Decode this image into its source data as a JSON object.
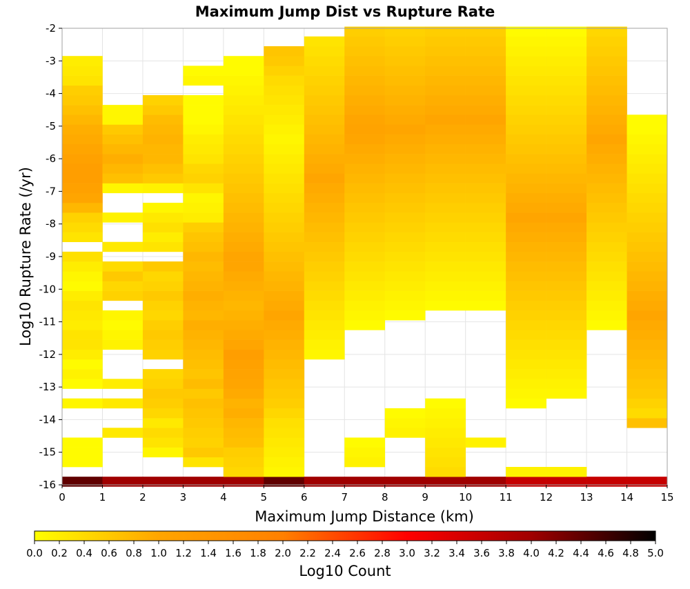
{
  "chart_data": {
    "type": "heatmap",
    "title": "Maximum Jump Dist vs Rupture Rate",
    "xlabel": "Maximum Jump Distance (km)",
    "ylabel": "Log10 Rupture Rate (/yr)",
    "xlim": [
      0,
      15
    ],
    "ylim": [
      -16,
      -2
    ],
    "x_ticks": [
      "0",
      "1",
      "2",
      "3",
      "4",
      "5",
      "6",
      "7",
      "8",
      "9",
      "10",
      "11",
      "12",
      "13",
      "14",
      "15"
    ],
    "y_ticks": [
      "-16",
      "-15",
      "-14",
      "-13",
      "-12",
      "-11",
      "-10",
      "-9",
      "-8",
      "-7",
      "-6",
      "-5",
      "-4",
      "-3",
      "-2"
    ],
    "x_bin_width": 1,
    "y_bin_height": 0.3,
    "y_bin_start": -15.9,
    "grid": true,
    "colorbar": {
      "label": "Log10 Count",
      "range": [
        0,
        5
      ],
      "ticks": [
        "0.0",
        "0.2",
        "0.4",
        "0.6",
        "0.8",
        "1.0",
        "1.2",
        "1.4",
        "1.6",
        "1.8",
        "2.0",
        "2.2",
        "2.4",
        "2.6",
        "2.8",
        "3.0",
        "3.2",
        "3.4",
        "3.6",
        "3.8",
        "4.0",
        "4.2",
        "4.4",
        "4.6",
        "4.8",
        "5.0"
      ],
      "colors": [
        "#ffff00",
        "#ffa500",
        "#ff8000",
        "#ff0000",
        "#a00000",
        "#000000"
      ]
    },
    "columns": [
      {
        "x": 0,
        "values": [
          4.4,
          0,
          0.05,
          0.05,
          0.05,
          0,
          0,
          0,
          0.1,
          0,
          0.05,
          0.15,
          0.05,
          0.2,
          0.3,
          0.3,
          0.2,
          0.25,
          0.3,
          0.2,
          0.05,
          0.1,
          0.2,
          0.35,
          0,
          0.3,
          0.4,
          0.5,
          0.8,
          1.0,
          1.1,
          1.2,
          1.2,
          1.1,
          1.0,
          0.95,
          0.9,
          0.8,
          0.7,
          0.6,
          0.55,
          0.3,
          0.25,
          0.2,
          0,
          0,
          0
        ]
      },
      {
        "x": 1,
        "values": [
          4.0,
          0,
          0,
          0,
          0,
          0.25,
          0,
          0,
          0.25,
          0,
          0.2,
          0,
          0,
          0,
          0.15,
          0.1,
          0.05,
          0.1,
          0,
          0.5,
          0.45,
          0.6,
          0.4,
          0,
          0.25,
          0,
          0,
          0.15,
          0,
          0,
          0.1,
          0.7,
          0.8,
          0.9,
          0.8,
          0.7,
          0.6,
          0.1,
          0.1,
          0,
          0,
          0,
          0,
          0,
          0,
          0,
          0
        ]
      },
      {
        "x": 2,
        "values": [
          4.0,
          0,
          0,
          0.1,
          0.3,
          0.4,
          0.25,
          0.45,
          0.55,
          0.6,
          0.5,
          0.45,
          0,
          0.5,
          0.55,
          0.6,
          0.55,
          0.45,
          0.5,
          0.6,
          0.5,
          0.45,
          0.6,
          0,
          0.3,
          0.2,
          0.35,
          0.25,
          0.1,
          0,
          0.15,
          0.6,
          0.7,
          0.8,
          0.8,
          0.85,
          0.8,
          0.75,
          0.6,
          0.5,
          0,
          0,
          0,
          0,
          0,
          0,
          0
        ]
      },
      {
        "x": 3,
        "values": [
          4.0,
          0,
          0.3,
          0.6,
          0.5,
          0.55,
          0.6,
          0.65,
          0.7,
          0.6,
          0.75,
          0.65,
          0.7,
          0.75,
          0.8,
          0.85,
          0.9,
          0.8,
          0.85,
          0.9,
          0.85,
          0.8,
          0.75,
          0.8,
          0.7,
          0.65,
          0.55,
          0.2,
          0.15,
          0.1,
          0.3,
          0.5,
          0.45,
          0.3,
          0.25,
          0.2,
          0.1,
          0.05,
          0.05,
          0.05,
          0,
          0.1,
          0.05,
          0,
          0,
          0,
          0
        ]
      },
      {
        "x": 4,
        "values": [
          4.0,
          0.45,
          0.5,
          0.55,
          0.7,
          0.75,
          0.8,
          0.9,
          0.85,
          0.95,
          1.0,
          1.05,
          1.1,
          1.2,
          1.0,
          0.95,
          0.9,
          0.85,
          0.8,
          0.85,
          0.9,
          0.95,
          1.0,
          1.0,
          0.95,
          0.9,
          0.85,
          0.8,
          0.75,
          0.7,
          0.65,
          0.6,
          0.55,
          0.5,
          0.45,
          0.4,
          0.35,
          0.3,
          0.25,
          0.2,
          0.15,
          0.1,
          0.05,
          0.05,
          0,
          0,
          0
        ]
      },
      {
        "x": 5,
        "values": [
          4.4,
          0.1,
          0.15,
          0.2,
          0.25,
          0.3,
          0.35,
          0.45,
          0.55,
          0.6,
          0.65,
          0.7,
          0.75,
          0.8,
          0.85,
          0.9,
          0.95,
          1.0,
          0.95,
          0.9,
          0.85,
          0.8,
          0.75,
          0.7,
          0.65,
          0.6,
          0.55,
          0.5,
          0.45,
          0.4,
          0.35,
          0.3,
          0.25,
          0.2,
          0.15,
          0.1,
          0.15,
          0.2,
          0.25,
          0.3,
          0.35,
          0.4,
          0.5,
          0.6,
          0.65,
          0,
          0
        ]
      },
      {
        "x": 6,
        "values": [
          4.0,
          0,
          0,
          0,
          0,
          0,
          0,
          0,
          0,
          0,
          0,
          0,
          0,
          0.1,
          0.15,
          0.2,
          0.25,
          0.3,
          0.35,
          0.4,
          0.45,
          0.5,
          0.55,
          0.6,
          0.65,
          0.7,
          0.75,
          0.8,
          0.85,
          0.9,
          0.95,
          1.0,
          0.95,
          0.9,
          0.85,
          0.8,
          0.75,
          0.7,
          0.65,
          0.6,
          0.55,
          0.5,
          0.45,
          0.4,
          0.35,
          0.3,
          0
        ]
      },
      {
        "x": 7,
        "values": [
          4.0,
          0,
          0.15,
          0.1,
          0.05,
          0,
          0,
          0,
          0,
          0,
          0,
          0,
          0,
          0,
          0,
          0,
          0.05,
          0.1,
          0.15,
          0.2,
          0.25,
          0.3,
          0.35,
          0.4,
          0.45,
          0.5,
          0.55,
          0.6,
          0.65,
          0.7,
          0.75,
          0.8,
          0.85,
          0.9,
          0.95,
          1.0,
          1.05,
          1.0,
          0.95,
          0.9,
          0.85,
          0.8,
          0.75,
          0.7,
          0.65,
          0.6,
          0.55
        ]
      },
      {
        "x": 8,
        "values": [
          4.0,
          0,
          0,
          0,
          0,
          0.15,
          0.1,
          0.05,
          0,
          0,
          0,
          0,
          0,
          0,
          0,
          0,
          0,
          0.05,
          0.1,
          0.15,
          0.2,
          0.25,
          0.3,
          0.35,
          0.4,
          0.45,
          0.5,
          0.55,
          0.6,
          0.65,
          0.7,
          0.75,
          0.8,
          0.85,
          0.9,
          0.95,
          1.0,
          0.95,
          0.9,
          0.85,
          0.8,
          0.75,
          0.7,
          0.65,
          0.6,
          0.55,
          0.5
        ]
      },
      {
        "x": 9,
        "values": [
          4.0,
          0.4,
          0.35,
          0.3,
          0.25,
          0.2,
          0.15,
          0.1,
          0.05,
          0,
          0,
          0,
          0,
          0,
          0,
          0,
          0,
          0,
          0.05,
          0.1,
          0.15,
          0.2,
          0.25,
          0.3,
          0.35,
          0.4,
          0.45,
          0.5,
          0.55,
          0.6,
          0.65,
          0.7,
          0.75,
          0.8,
          0.85,
          0.9,
          0.95,
          1.0,
          0.95,
          0.9,
          0.85,
          0.8,
          0.75,
          0.7,
          0.65,
          0.6,
          0.55
        ]
      },
      {
        "x": 10,
        "values": [
          4.0,
          0,
          0,
          0,
          0.15,
          0,
          0,
          0,
          0,
          0,
          0,
          0,
          0,
          0,
          0,
          0,
          0,
          0,
          0.05,
          0.1,
          0.15,
          0.2,
          0.25,
          0.3,
          0.35,
          0.4,
          0.45,
          0.5,
          0.55,
          0.6,
          0.65,
          0.7,
          0.75,
          0.8,
          0.85,
          0.9,
          0.95,
          1.0,
          0.95,
          0.9,
          0.85,
          0.8,
          0.75,
          0.7,
          0.65,
          0.6,
          0.55
        ]
      },
      {
        "x": 11,
        "values": [
          3.6,
          0.15,
          0,
          0,
          0,
          0,
          0,
          0,
          0.05,
          0.1,
          0.15,
          0.2,
          0.25,
          0.3,
          0.35,
          0.4,
          0.45,
          0.5,
          0.55,
          0.6,
          0.65,
          0.7,
          0.75,
          0.8,
          0.85,
          0.9,
          0.95,
          1.0,
          0.95,
          0.9,
          0.85,
          0.8,
          0.75,
          0.7,
          0.65,
          0.6,
          0.55,
          0.5,
          0.45,
          0.4,
          0.35,
          0.3,
          0.25,
          0.2,
          0.15,
          0.1,
          0.05
        ]
      },
      {
        "x": 12,
        "values": [
          3.6,
          0.15,
          0,
          0,
          0,
          0,
          0,
          0,
          0,
          0.1,
          0.15,
          0.2,
          0.25,
          0.3,
          0.35,
          0.4,
          0.45,
          0.5,
          0.55,
          0.6,
          0.65,
          0.7,
          0.75,
          0.8,
          0.85,
          0.9,
          0.95,
          1.0,
          0.95,
          0.9,
          0.85,
          0.8,
          0.75,
          0.7,
          0.65,
          0.6,
          0.55,
          0.5,
          0.45,
          0.4,
          0.35,
          0.3,
          0.25,
          0.2,
          0.15,
          0.1,
          0.05
        ]
      },
      {
        "x": 13,
        "values": [
          3.6,
          0,
          0,
          0,
          0,
          0,
          0,
          0,
          0,
          0,
          0,
          0,
          0,
          0,
          0,
          0,
          0.05,
          0.1,
          0.15,
          0.2,
          0.25,
          0.3,
          0.35,
          0.4,
          0.45,
          0.5,
          0.55,
          0.6,
          0.65,
          0.7,
          0.75,
          0.8,
          0.85,
          0.9,
          0.95,
          1.0,
          0.95,
          0.9,
          0.85,
          0.8,
          0.75,
          0.7,
          0.65,
          0.6,
          0.55,
          0.5,
          0.45
        ]
      },
      {
        "x": 14,
        "values": [
          3.6,
          0,
          0,
          0,
          0,
          0,
          0.7,
          0.4,
          0.5,
          0.6,
          0.65,
          0.7,
          0.75,
          0.8,
          0.85,
          0.9,
          0.95,
          1.0,
          0.95,
          0.9,
          0.85,
          0.8,
          0.75,
          0.7,
          0.65,
          0.6,
          0.55,
          0.5,
          0.45,
          0.4,
          0.35,
          0.3,
          0.25,
          0.2,
          0.15,
          0.1,
          0.05,
          0.05,
          0,
          0,
          0,
          0,
          0,
          0,
          0,
          0,
          0
        ]
      }
    ]
  }
}
